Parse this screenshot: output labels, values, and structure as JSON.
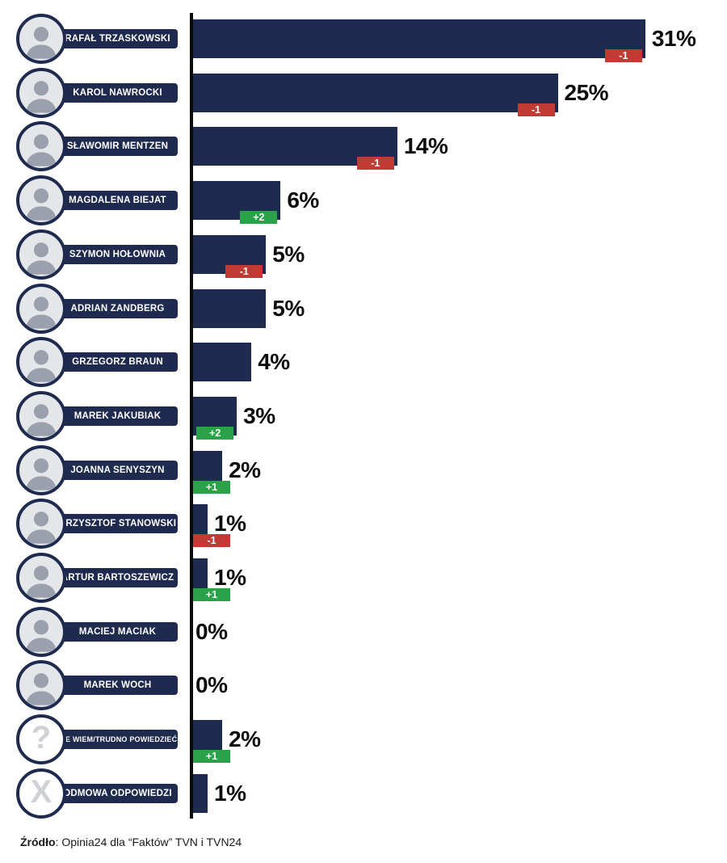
{
  "chart_data": {
    "type": "bar",
    "orientation": "horizontal",
    "unit": "%",
    "title": "",
    "xlim": [
      0,
      35
    ],
    "grid": false,
    "categories": [
      "RAFAŁ TRZASKOWSKI",
      "KAROL NAWROCKI",
      "SŁAWOMIR MENTZEN",
      "MAGDALENA BIEJAT",
      "SZYMON HOŁOWNIA",
      "ADRIAN ZANDBERG",
      "GRZEGORZ BRAUN",
      "MAREK JAKUBIAK",
      "JOANNA SENYSZYN",
      "KRZYSZTOF STANOWSKI",
      "ARTUR BARTOSZEWICZ",
      "MACIEJ MACIAK",
      "MAREK WOCH",
      "NIE WIEM/TRUDNO POWIEDZIEĆ",
      "ODMOWA ODPOWIEDZI"
    ],
    "values": [
      31,
      25,
      14,
      6,
      5,
      5,
      4,
      3,
      2,
      1,
      1,
      0,
      0,
      2,
      1
    ],
    "changes": [
      -1,
      -1,
      -1,
      2,
      -1,
      null,
      null,
      2,
      1,
      -1,
      1,
      null,
      null,
      1,
      null
    ],
    "rows": [
      {
        "name": "RAFAŁ TRZASKOWSKI",
        "value": 31,
        "value_label": "31%",
        "change": -1,
        "change_label": "-1",
        "icon": "photo"
      },
      {
        "name": "KAROL NAWROCKI",
        "value": 25,
        "value_label": "25%",
        "change": -1,
        "change_label": "-1",
        "icon": "photo"
      },
      {
        "name": "SŁAWOMIR MENTZEN",
        "value": 14,
        "value_label": "14%",
        "change": -1,
        "change_label": "-1",
        "icon": "photo"
      },
      {
        "name": "MAGDALENA BIEJAT",
        "value": 6,
        "value_label": "6%",
        "change": 2,
        "change_label": "+2",
        "icon": "photo"
      },
      {
        "name": "SZYMON HOŁOWNIA",
        "value": 5,
        "value_label": "5%",
        "change": -1,
        "change_label": "-1",
        "icon": "photo"
      },
      {
        "name": "ADRIAN ZANDBERG",
        "value": 5,
        "value_label": "5%",
        "change": null,
        "change_label": "",
        "icon": "photo"
      },
      {
        "name": "GRZEGORZ BRAUN",
        "value": 4,
        "value_label": "4%",
        "change": null,
        "change_label": "",
        "icon": "photo"
      },
      {
        "name": "MAREK JAKUBIAK",
        "value": 3,
        "value_label": "3%",
        "change": 2,
        "change_label": "+2",
        "icon": "photo"
      },
      {
        "name": "JOANNA SENYSZYN",
        "value": 2,
        "value_label": "2%",
        "change": 1,
        "change_label": "+1",
        "icon": "photo"
      },
      {
        "name": "KRZYSZTOF STANOWSKI",
        "value": 1,
        "value_label": "1%",
        "change": -1,
        "change_label": "-1",
        "icon": "photo"
      },
      {
        "name": "ARTUR BARTOSZEWICZ",
        "value": 1,
        "value_label": "1%",
        "change": 1,
        "change_label": "+1",
        "icon": "photo"
      },
      {
        "name": "MACIEJ MACIAK",
        "value": 0,
        "value_label": "0%",
        "change": null,
        "change_label": "",
        "icon": "photo"
      },
      {
        "name": "MAREK WOCH",
        "value": 0,
        "value_label": "0%",
        "change": null,
        "change_label": "",
        "icon": "photo"
      },
      {
        "name": "NIE WIEM/TRUDNO POWIEDZIEĆ",
        "value": 2,
        "value_label": "2%",
        "change": 1,
        "change_label": "+1",
        "icon": "glyph",
        "icon_glyph": "?",
        "icon_name": "question-mark-icon"
      },
      {
        "name": "ODMOWA ODPOWIEDZI",
        "value": 1,
        "value_label": "1%",
        "change": null,
        "change_label": "",
        "icon": "glyph",
        "icon_glyph": "X",
        "icon_name": "x-icon"
      }
    ],
    "source_bold": "Źródło",
    "source_rest": ": Opinia24 dla “Faktów” TVN i TVN24"
  },
  "colors": {
    "bar_navy": "#1f2b4e",
    "badge_red": "#c13a33",
    "badge_green": "#2aa248",
    "axis_black": "#0a0a0a",
    "background": "#ffffff"
  }
}
